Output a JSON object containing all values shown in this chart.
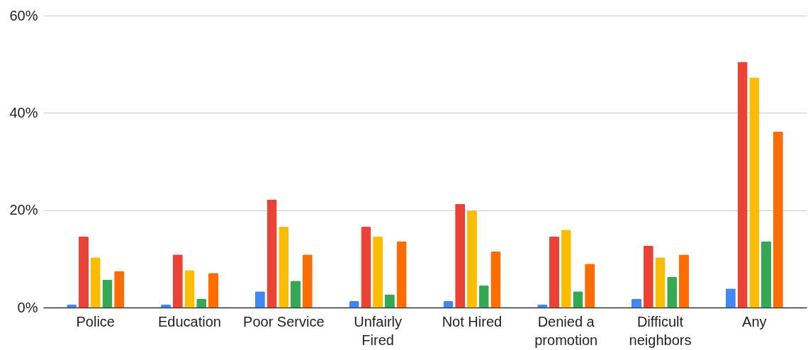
{
  "chart_data": {
    "type": "bar",
    "categories": [
      "Police",
      "Education",
      "Poor Service",
      "Unfairly Fired",
      "Not Hired",
      "Denied a promotion",
      "Difficult neighbors",
      "Any"
    ],
    "series": [
      {
        "color": "#4285f4",
        "values": [
          0.6,
          0.6,
          3.3,
          1.3,
          1.3,
          0.6,
          1.8,
          3.9
        ]
      },
      {
        "color": "#ea4335",
        "values": [
          14.6,
          10.9,
          22.2,
          16.6,
          21.3,
          14.6,
          12.7,
          50.5
        ]
      },
      {
        "color": "#fbbc04",
        "values": [
          10.3,
          7.7,
          16.6,
          14.6,
          19.9,
          16.0,
          10.3,
          47.3
        ]
      },
      {
        "color": "#34a853",
        "values": [
          5.7,
          1.8,
          5.5,
          2.7,
          4.5,
          3.3,
          6.3,
          13.6
        ]
      },
      {
        "color": "#ff6d01",
        "values": [
          7.5,
          7.1,
          10.9,
          13.6,
          11.5,
          9.0,
          10.9,
          36.2
        ]
      }
    ],
    "ylim": [
      0,
      60
    ],
    "yticks": [
      {
        "value": 0,
        "label": "0%"
      },
      {
        "value": 20,
        "label": "20%"
      },
      {
        "value": 40,
        "label": "40%"
      },
      {
        "value": 60,
        "label": "60%"
      }
    ],
    "grid": "y"
  }
}
